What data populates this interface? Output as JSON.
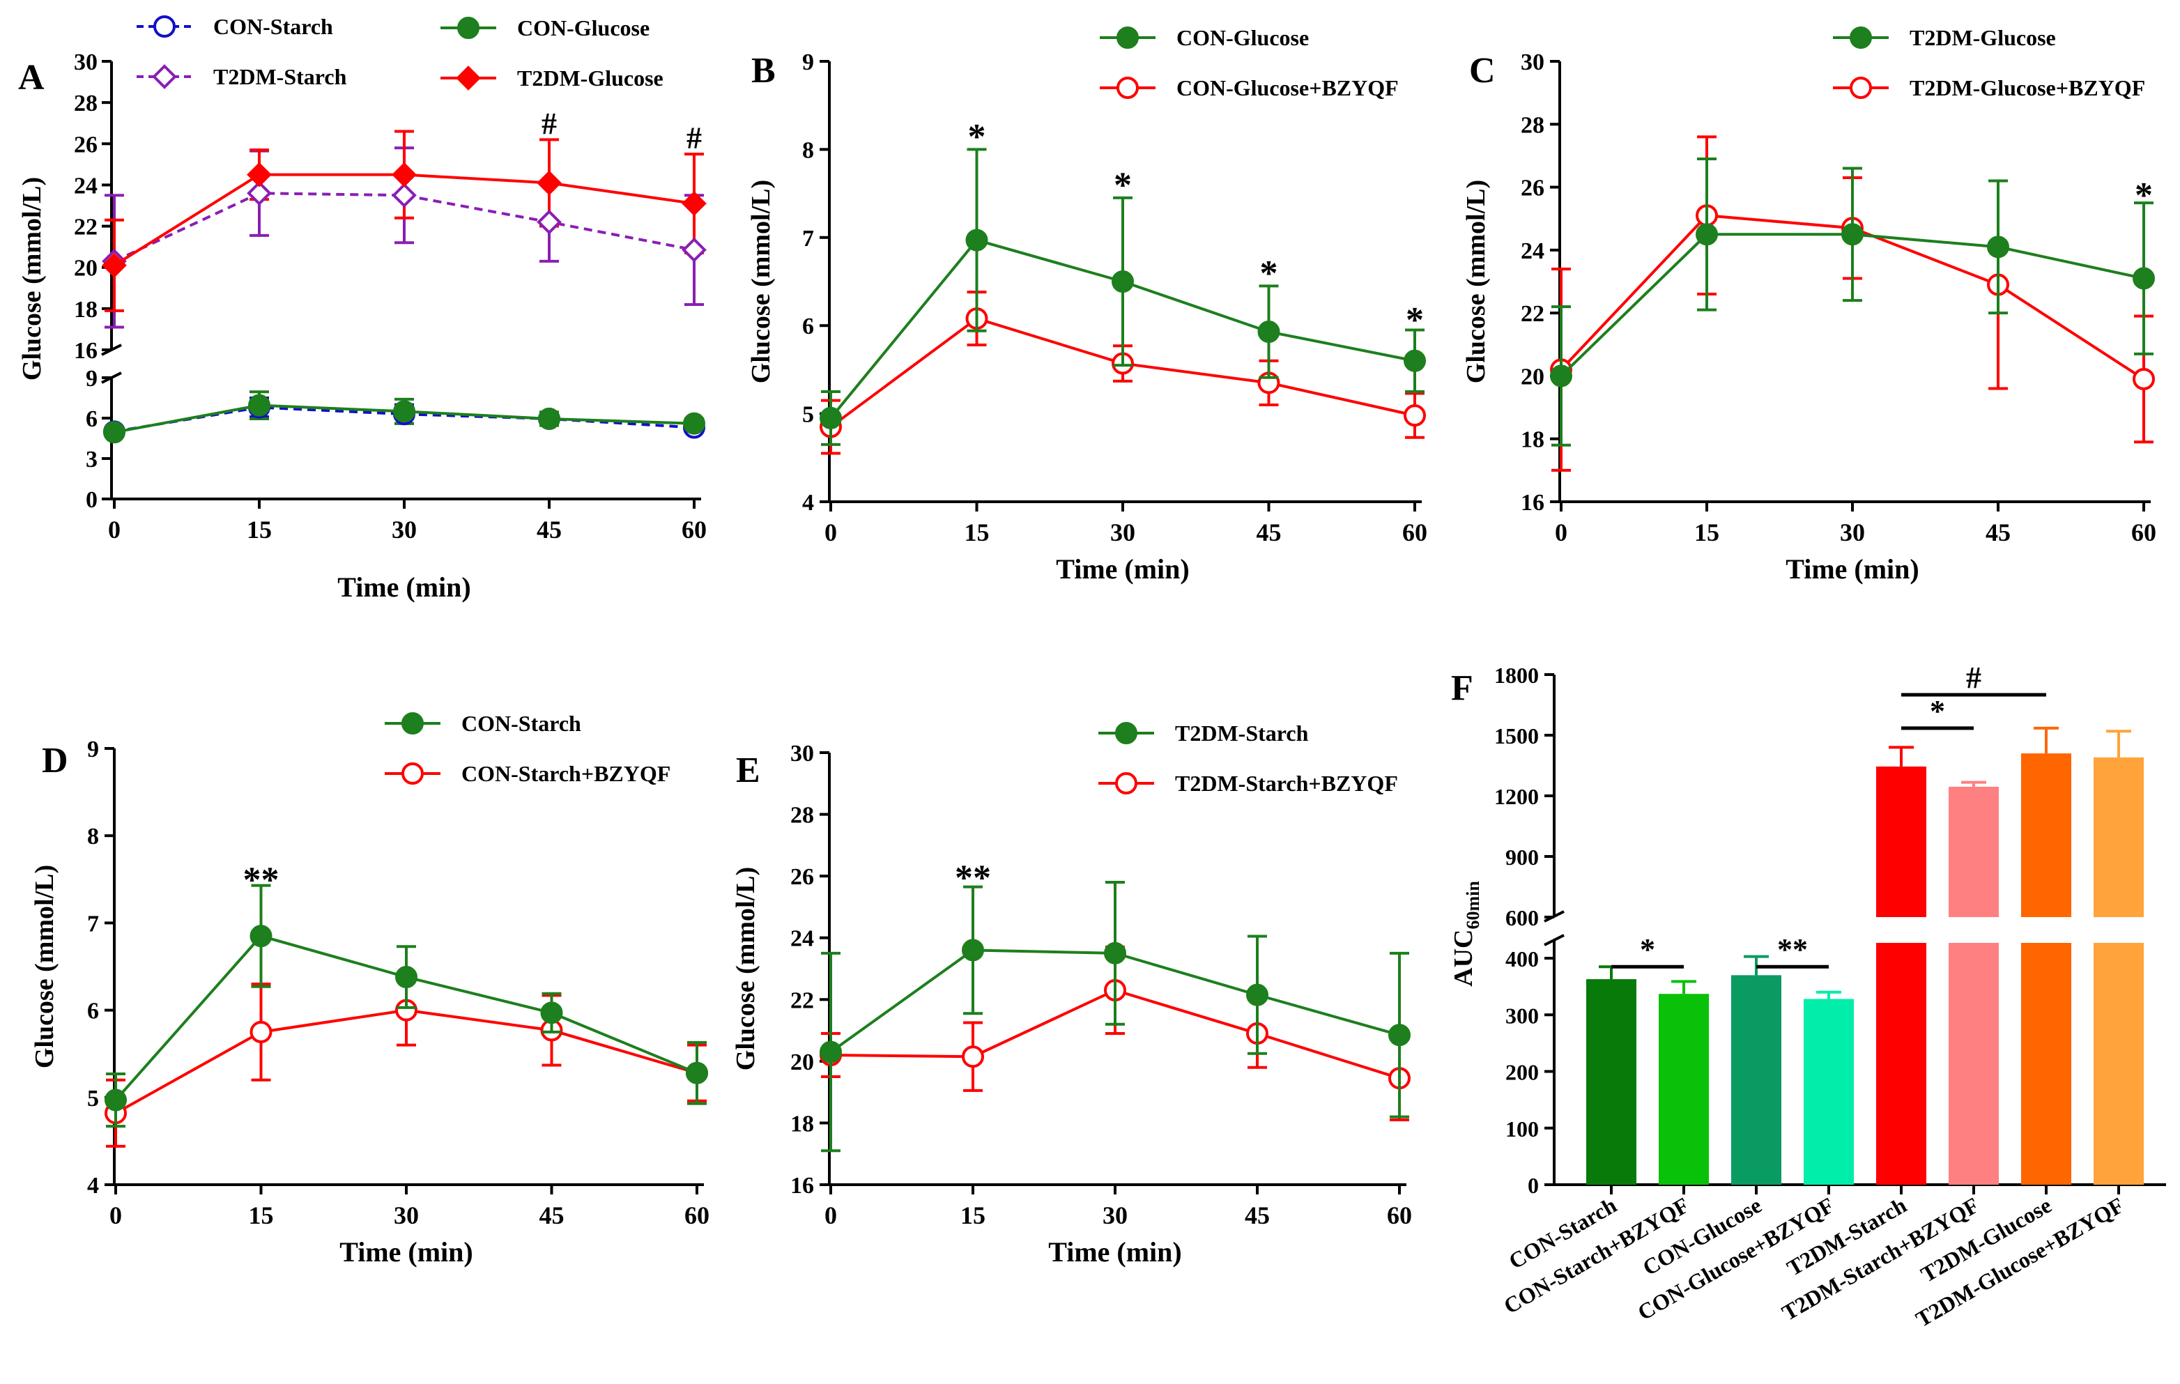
{
  "colors": {
    "green": "#1d7f1d",
    "red": "#ff0000",
    "blue": "#1010c8",
    "purple": "#8a1eb4",
    "black": "#000000"
  },
  "chart_data": [
    {
      "panel": "A",
      "type": "line",
      "title": "",
      "xlabel": "Time (min)",
      "ylabel": "Glucose (mmol/L)",
      "x": [
        0,
        15,
        30,
        45,
        60
      ],
      "xticks": [
        "0",
        "15",
        "30",
        "45",
        "60"
      ],
      "ylim_upper": [
        16,
        30
      ],
      "yticks_upper": [
        "16",
        "18",
        "20",
        "22",
        "24",
        "26",
        "28",
        "30"
      ],
      "ylim_lower": [
        0,
        9
      ],
      "yticks_lower": [
        "0",
        "3",
        "6",
        "9"
      ],
      "series": [
        {
          "name": "CON-Starch",
          "segment": "lower",
          "color": "#1010c8",
          "marker": "open-circle",
          "dashed": true,
          "values": [
            5.0,
            6.8,
            6.3,
            5.95,
            5.3
          ],
          "errors": [
            0.3,
            0.7,
            0.7,
            0.3,
            0.3
          ]
        },
        {
          "name": "CON-Glucose",
          "segment": "lower",
          "color": "#1d7f1d",
          "marker": "filled-circle",
          "dashed": false,
          "values": [
            4.95,
            6.95,
            6.5,
            5.95,
            5.6
          ],
          "errors": [
            0.3,
            1.0,
            0.9,
            0.5,
            0.35
          ]
        },
        {
          "name": "T2DM-Starch",
          "segment": "upper",
          "color": "#8a1eb4",
          "marker": "open-diamond",
          "dashed": true,
          "values": [
            20.3,
            23.6,
            23.5,
            22.2,
            20.85
          ],
          "errors": [
            3.2,
            2.05,
            2.3,
            1.9,
            2.65
          ]
        },
        {
          "name": "T2DM-Glucose",
          "segment": "upper",
          "color": "#ff0000",
          "marker": "filled-diamond",
          "dashed": false,
          "values": [
            20.1,
            24.5,
            24.5,
            24.1,
            23.1
          ],
          "errors": [
            2.2,
            1.2,
            2.1,
            2.1,
            2.4
          ]
        }
      ],
      "annotations": [
        {
          "x": 45,
          "y": 27.1,
          "text": "#"
        },
        {
          "x": 60,
          "y": 26.4,
          "text": "#"
        }
      ]
    },
    {
      "panel": "B",
      "type": "line",
      "xlabel": "Time (min)",
      "ylabel": "Glucose (mmol/L)",
      "x": [
        0,
        15,
        30,
        45,
        60
      ],
      "xticks": [
        "0",
        "15",
        "30",
        "45",
        "60"
      ],
      "ylim": [
        4,
        9
      ],
      "yticks": [
        "4",
        "5",
        "6",
        "7",
        "8",
        "9"
      ],
      "series": [
        {
          "name": "CON-Glucose",
          "color": "#1d7f1d",
          "marker": "filled-circle",
          "values": [
            4.95,
            6.97,
            6.5,
            5.93,
            5.6
          ],
          "errors": [
            0.3,
            1.03,
            0.95,
            0.52,
            0.35
          ]
        },
        {
          "name": "CON-Glucose+BZYQF",
          "color": "#ff0000",
          "marker": "open-circle",
          "values": [
            4.85,
            6.08,
            5.57,
            5.35,
            4.98
          ],
          "errors": [
            0.3,
            0.3,
            0.2,
            0.25,
            0.25
          ]
        }
      ],
      "annotations": [
        {
          "x": 15,
          "y": 8.2,
          "text": "*"
        },
        {
          "x": 30,
          "y": 7.65,
          "text": "*"
        },
        {
          "x": 45,
          "y": 6.65,
          "text": "*"
        },
        {
          "x": 60,
          "y": 6.12,
          "text": "*"
        }
      ]
    },
    {
      "panel": "C",
      "type": "line",
      "xlabel": "Time (min)",
      "ylabel": "Glucose (mmol/L)",
      "x": [
        0,
        15,
        30,
        45,
        60
      ],
      "xticks": [
        "0",
        "15",
        "30",
        "45",
        "60"
      ],
      "ylim": [
        16,
        30
      ],
      "yticks": [
        "16",
        "18",
        "20",
        "22",
        "24",
        "26",
        "28",
        "30"
      ],
      "series": [
        {
          "name": "T2DM-Glucose",
          "color": "#1d7f1d",
          "marker": "filled-circle",
          "values": [
            20.0,
            24.5,
            24.5,
            24.1,
            23.1
          ],
          "errors": [
            2.2,
            2.4,
            2.1,
            2.1,
            2.4
          ]
        },
        {
          "name": "T2DM-Glucose+BZYQF",
          "color": "#ff0000",
          "marker": "open-circle",
          "values": [
            20.2,
            25.1,
            24.7,
            22.9,
            19.9
          ],
          "errors": [
            3.2,
            2.5,
            1.6,
            3.3,
            2.0
          ]
        }
      ],
      "annotations": [
        {
          "x": 60,
          "y": 25.9,
          "text": "*"
        }
      ]
    },
    {
      "panel": "D",
      "type": "line",
      "xlabel": "Time (min)",
      "ylabel": "Glucose (mmol/L)",
      "x": [
        0,
        15,
        30,
        45,
        60
      ],
      "xticks": [
        "0",
        "15",
        "30",
        "45",
        "60"
      ],
      "ylim": [
        4,
        9
      ],
      "yticks": [
        "4",
        "5",
        "6",
        "7",
        "8",
        "9"
      ],
      "series": [
        {
          "name": "CON-Starch",
          "color": "#1d7f1d",
          "marker": "filled-circle",
          "values": [
            4.97,
            6.85,
            6.38,
            5.97,
            5.28
          ],
          "errors": [
            0.3,
            0.58,
            0.35,
            0.22,
            0.35
          ]
        },
        {
          "name": "CON-Starch+BZYQF",
          "color": "#ff0000",
          "marker": "open-circle",
          "values": [
            4.82,
            5.75,
            6.0,
            5.77,
            5.28
          ],
          "errors": [
            0.38,
            0.55,
            0.4,
            0.4,
            0.32
          ]
        }
      ],
      "annotations": [
        {
          "x": 15,
          "y": 7.55,
          "text": "**"
        }
      ]
    },
    {
      "panel": "E",
      "type": "line",
      "xlabel": "Time (min)",
      "ylabel": "Glucose (mmol/L)",
      "x": [
        0,
        15,
        30,
        45,
        60
      ],
      "xticks": [
        "0",
        "15",
        "30",
        "45",
        "60"
      ],
      "ylim": [
        16,
        30
      ],
      "yticks": [
        "16",
        "18",
        "20",
        "22",
        "24",
        "26",
        "28",
        "30"
      ],
      "series": [
        {
          "name": "T2DM-Starch",
          "color": "#1d7f1d",
          "marker": "filled-circle",
          "values": [
            20.3,
            23.6,
            23.5,
            22.15,
            20.85
          ],
          "errors": [
            3.2,
            2.05,
            2.3,
            1.9,
            2.65
          ]
        },
        {
          "name": "T2DM-Starch+BZYQF",
          "color": "#ff0000",
          "marker": "open-circle",
          "values": [
            20.2,
            20.15,
            22.3,
            20.9,
            19.45
          ],
          "errors": [
            0.7,
            1.1,
            1.4,
            1.1,
            1.35
          ]
        }
      ],
      "annotations": [
        {
          "x": 15,
          "y": 26.1,
          "text": "**"
        }
      ]
    },
    {
      "panel": "F",
      "type": "bar",
      "ylabel": "AUC",
      "ylabel_sub": "60min",
      "categories": [
        "CON-Starch",
        "CON-Starch+BZYQF",
        "CON-Glucose",
        "CON-Glucose+BZYQF",
        "T2DM-Starch",
        "T2DM-Starch+BZYQF",
        "T2DM-Glucose",
        "T2DM-Glucose+BZYQF"
      ],
      "values": [
        363,
        337,
        370,
        328,
        1345,
        1245,
        1410,
        1390
      ],
      "errors": [
        22,
        22,
        33,
        12,
        95,
        22,
        125,
        130
      ],
      "colors": [
        "#087a0a",
        "#0ac10a",
        "#0a9b63",
        "#00eeaa",
        "#ff0000",
        "#ff8080",
        "#ff6600",
        "#ffa33a"
      ],
      "ylim_lower": [
        0,
        400
      ],
      "yticks_lower": [
        "0",
        "100",
        "200",
        "300",
        "400"
      ],
      "ylim_upper": [
        600,
        1800
      ],
      "yticks_upper": [
        "600",
        "900",
        "1200",
        "1500",
        "1800"
      ],
      "brackets": [
        {
          "from": 0,
          "to": 1,
          "y": 385,
          "text": "*"
        },
        {
          "from": 2,
          "to": 3,
          "y": 385,
          "text": "**"
        },
        {
          "from": 4,
          "to": 5,
          "y": 1535,
          "text": "*"
        },
        {
          "from": 4,
          "to": 6,
          "y": 1700,
          "text": "#"
        }
      ]
    }
  ]
}
